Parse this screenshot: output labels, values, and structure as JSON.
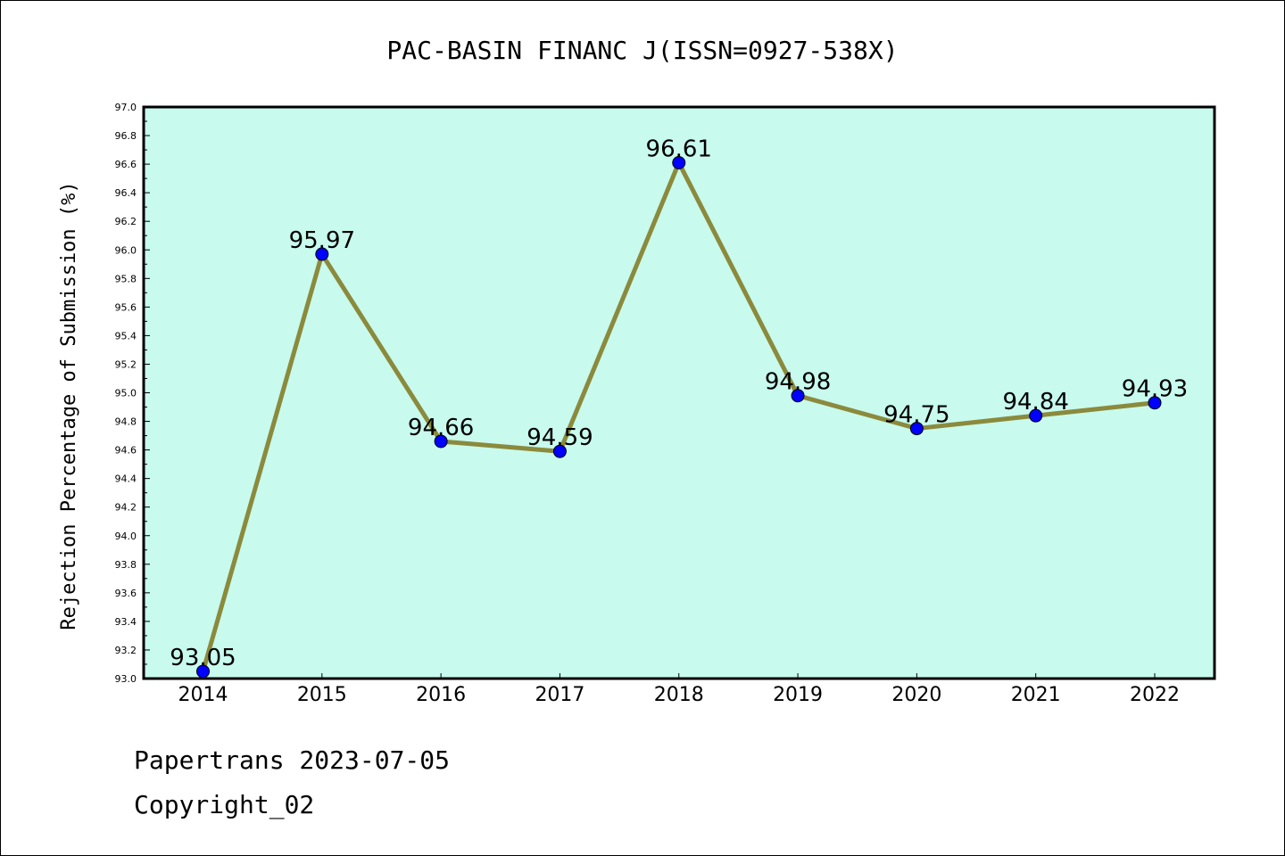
{
  "chart_data": {
    "type": "line",
    "title": "PAC-BASIN FINANC J(ISSN=0927-538X)",
    "xlabel": "",
    "ylabel": "Rejection Percentage of Submission (%)",
    "categories": [
      "2014",
      "2015",
      "2016",
      "2017",
      "2018",
      "2019",
      "2020",
      "2021",
      "2022"
    ],
    "series": [
      {
        "values": [
          93.05,
          95.97,
          94.66,
          94.59,
          96.61,
          94.98,
          94.75,
          94.84,
          94.93
        ],
        "labels": [
          "93.05",
          "95.97",
          "94.66",
          "94.59",
          "96.61",
          "94.98",
          "94.75",
          "94.84",
          "94.93"
        ]
      }
    ],
    "ylim": [
      93.0,
      97.0
    ],
    "yticks": [
      "93.0",
      "93.2",
      "93.4",
      "93.6",
      "93.8",
      "94.0",
      "94.2",
      "94.4",
      "94.6",
      "94.8",
      "95.0",
      "95.2",
      "95.4",
      "95.6",
      "95.8",
      "96.0",
      "96.2",
      "96.4",
      "96.6",
      "96.8",
      "97.0"
    ],
    "grid": false,
    "colors": {
      "plot_background": "#c8faee",
      "line": "#8b8a3c",
      "marker": "#0000ff"
    }
  },
  "footer": {
    "line1": "Papertrans 2023-07-05",
    "line2": "Copyright_02"
  }
}
